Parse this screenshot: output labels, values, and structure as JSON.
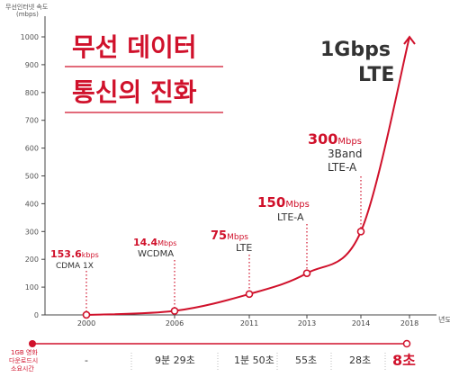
{
  "chart_data": {
    "type": "line",
    "ylabel": "무선인터넷 속도",
    "yunit": "(mbps)",
    "xlabel": "년도",
    "ylim": [
      0,
      1000
    ],
    "yticks": [
      0,
      100,
      200,
      300,
      400,
      500,
      600,
      700,
      800,
      900,
      1000
    ],
    "categories": [
      "2000",
      "2006",
      "2011",
      "2013",
      "2014",
      "2018"
    ],
    "values": [
      0.1536,
      14.4,
      75,
      150,
      300,
      1000
    ],
    "title_line1": "무선 데이터",
    "title_line2": "통신의 진화",
    "annotations": [
      {
        "value": "153.6",
        "unit": "kbps",
        "tech": "CDMA 1X"
      },
      {
        "value": "14.4",
        "unit": "Mbps",
        "tech": "WCDMA"
      },
      {
        "value": "75",
        "unit": "Mbps",
        "tech": "LTE"
      },
      {
        "value": "150",
        "unit": "Mbps",
        "tech": "LTE-A"
      },
      {
        "value": "300",
        "unit": "Mbps",
        "tech": "3Band",
        "tech2": "LTE-A"
      },
      {
        "value": "1Gbps",
        "unit": "",
        "tech": "LTE"
      }
    ],
    "download": {
      "label_lines": [
        "1GB 영화",
        "다운로드시",
        "소요시간"
      ],
      "times": [
        "-",
        "9분 29초",
        "1분 50초",
        "55초",
        "28초",
        "8초"
      ]
    },
    "colors": {
      "accent": "#d0112b",
      "axis": "#555555",
      "grid": "#aaaaaa"
    }
  }
}
